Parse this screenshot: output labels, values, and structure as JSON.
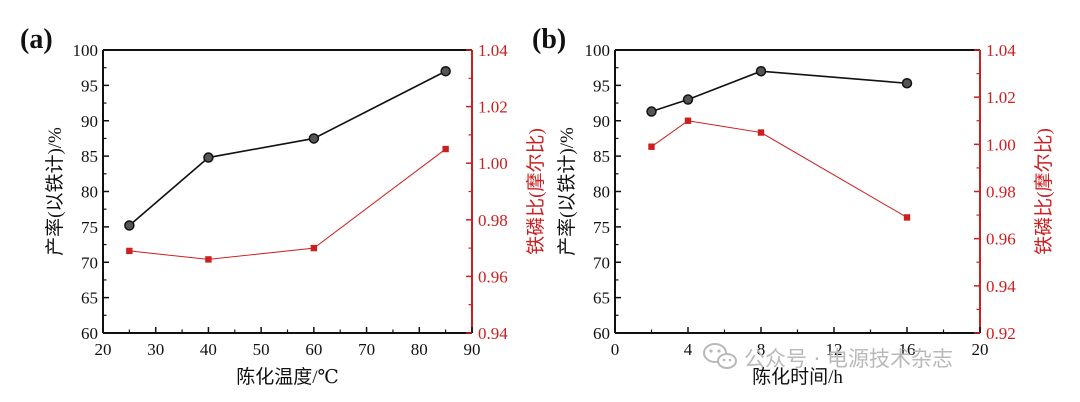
{
  "colors": {
    "primary": "#111111",
    "secondary": "#cc1f1f",
    "watermark": "#b9b9b9"
  },
  "watermark": {
    "icon": "wechat-icon",
    "text": "公众号 · 电源技术杂志"
  },
  "chart_data": [
    {
      "type": "line",
      "panel_label": "(a)",
      "xlabel": "陈化温度/℃",
      "ylabel_left": "产率(以铁计)/%",
      "ylabel_right": "铁磷比(摩尔比)",
      "xlim": [
        20,
        90
      ],
      "xticks": [
        20,
        30,
        40,
        50,
        60,
        70,
        80,
        90
      ],
      "ylim_left": [
        60,
        100
      ],
      "yticks_left": [
        60,
        65,
        70,
        75,
        80,
        85,
        90,
        95,
        100
      ],
      "ylim_right": [
        0.94,
        1.04
      ],
      "yticks_right": [
        "0.94",
        "0.96",
        "0.98",
        "1.00",
        "1.02",
        "1.04"
      ],
      "series": [
        {
          "axis": "left",
          "marker": "circle",
          "color": "#111111",
          "x": [
            25,
            40,
            60,
            85
          ],
          "y": [
            75.2,
            84.8,
            87.5,
            97.0
          ]
        },
        {
          "axis": "right",
          "marker": "square",
          "color": "#cc1f1f",
          "x": [
            25,
            40,
            60,
            85
          ],
          "y": [
            0.969,
            0.966,
            0.97,
            1.005
          ]
        }
      ]
    },
    {
      "type": "line",
      "panel_label": "(b)",
      "xlabel": "陈化时间/h",
      "ylabel_left": "产率(以铁计)/%",
      "ylabel_right": "铁磷比(摩尔比)",
      "xlim": [
        0,
        20
      ],
      "xticks": [
        0,
        4,
        8,
        12,
        16,
        20
      ],
      "ylim_left": [
        60,
        100
      ],
      "yticks_left": [
        60,
        65,
        70,
        75,
        80,
        85,
        90,
        95,
        100
      ],
      "ylim_right": [
        0.92,
        1.04
      ],
      "yticks_right": [
        "0.92",
        "0.94",
        "0.96",
        "0.98",
        "1.00",
        "1.02",
        "1.04"
      ],
      "series": [
        {
          "axis": "left",
          "marker": "circle",
          "color": "#111111",
          "x": [
            2,
            4,
            8,
            16
          ],
          "y": [
            91.3,
            93.0,
            97.0,
            95.3
          ]
        },
        {
          "axis": "right",
          "marker": "square",
          "color": "#cc1f1f",
          "x": [
            2,
            4,
            8,
            16
          ],
          "y": [
            0.999,
            1.01,
            1.005,
            0.969
          ]
        }
      ]
    }
  ]
}
